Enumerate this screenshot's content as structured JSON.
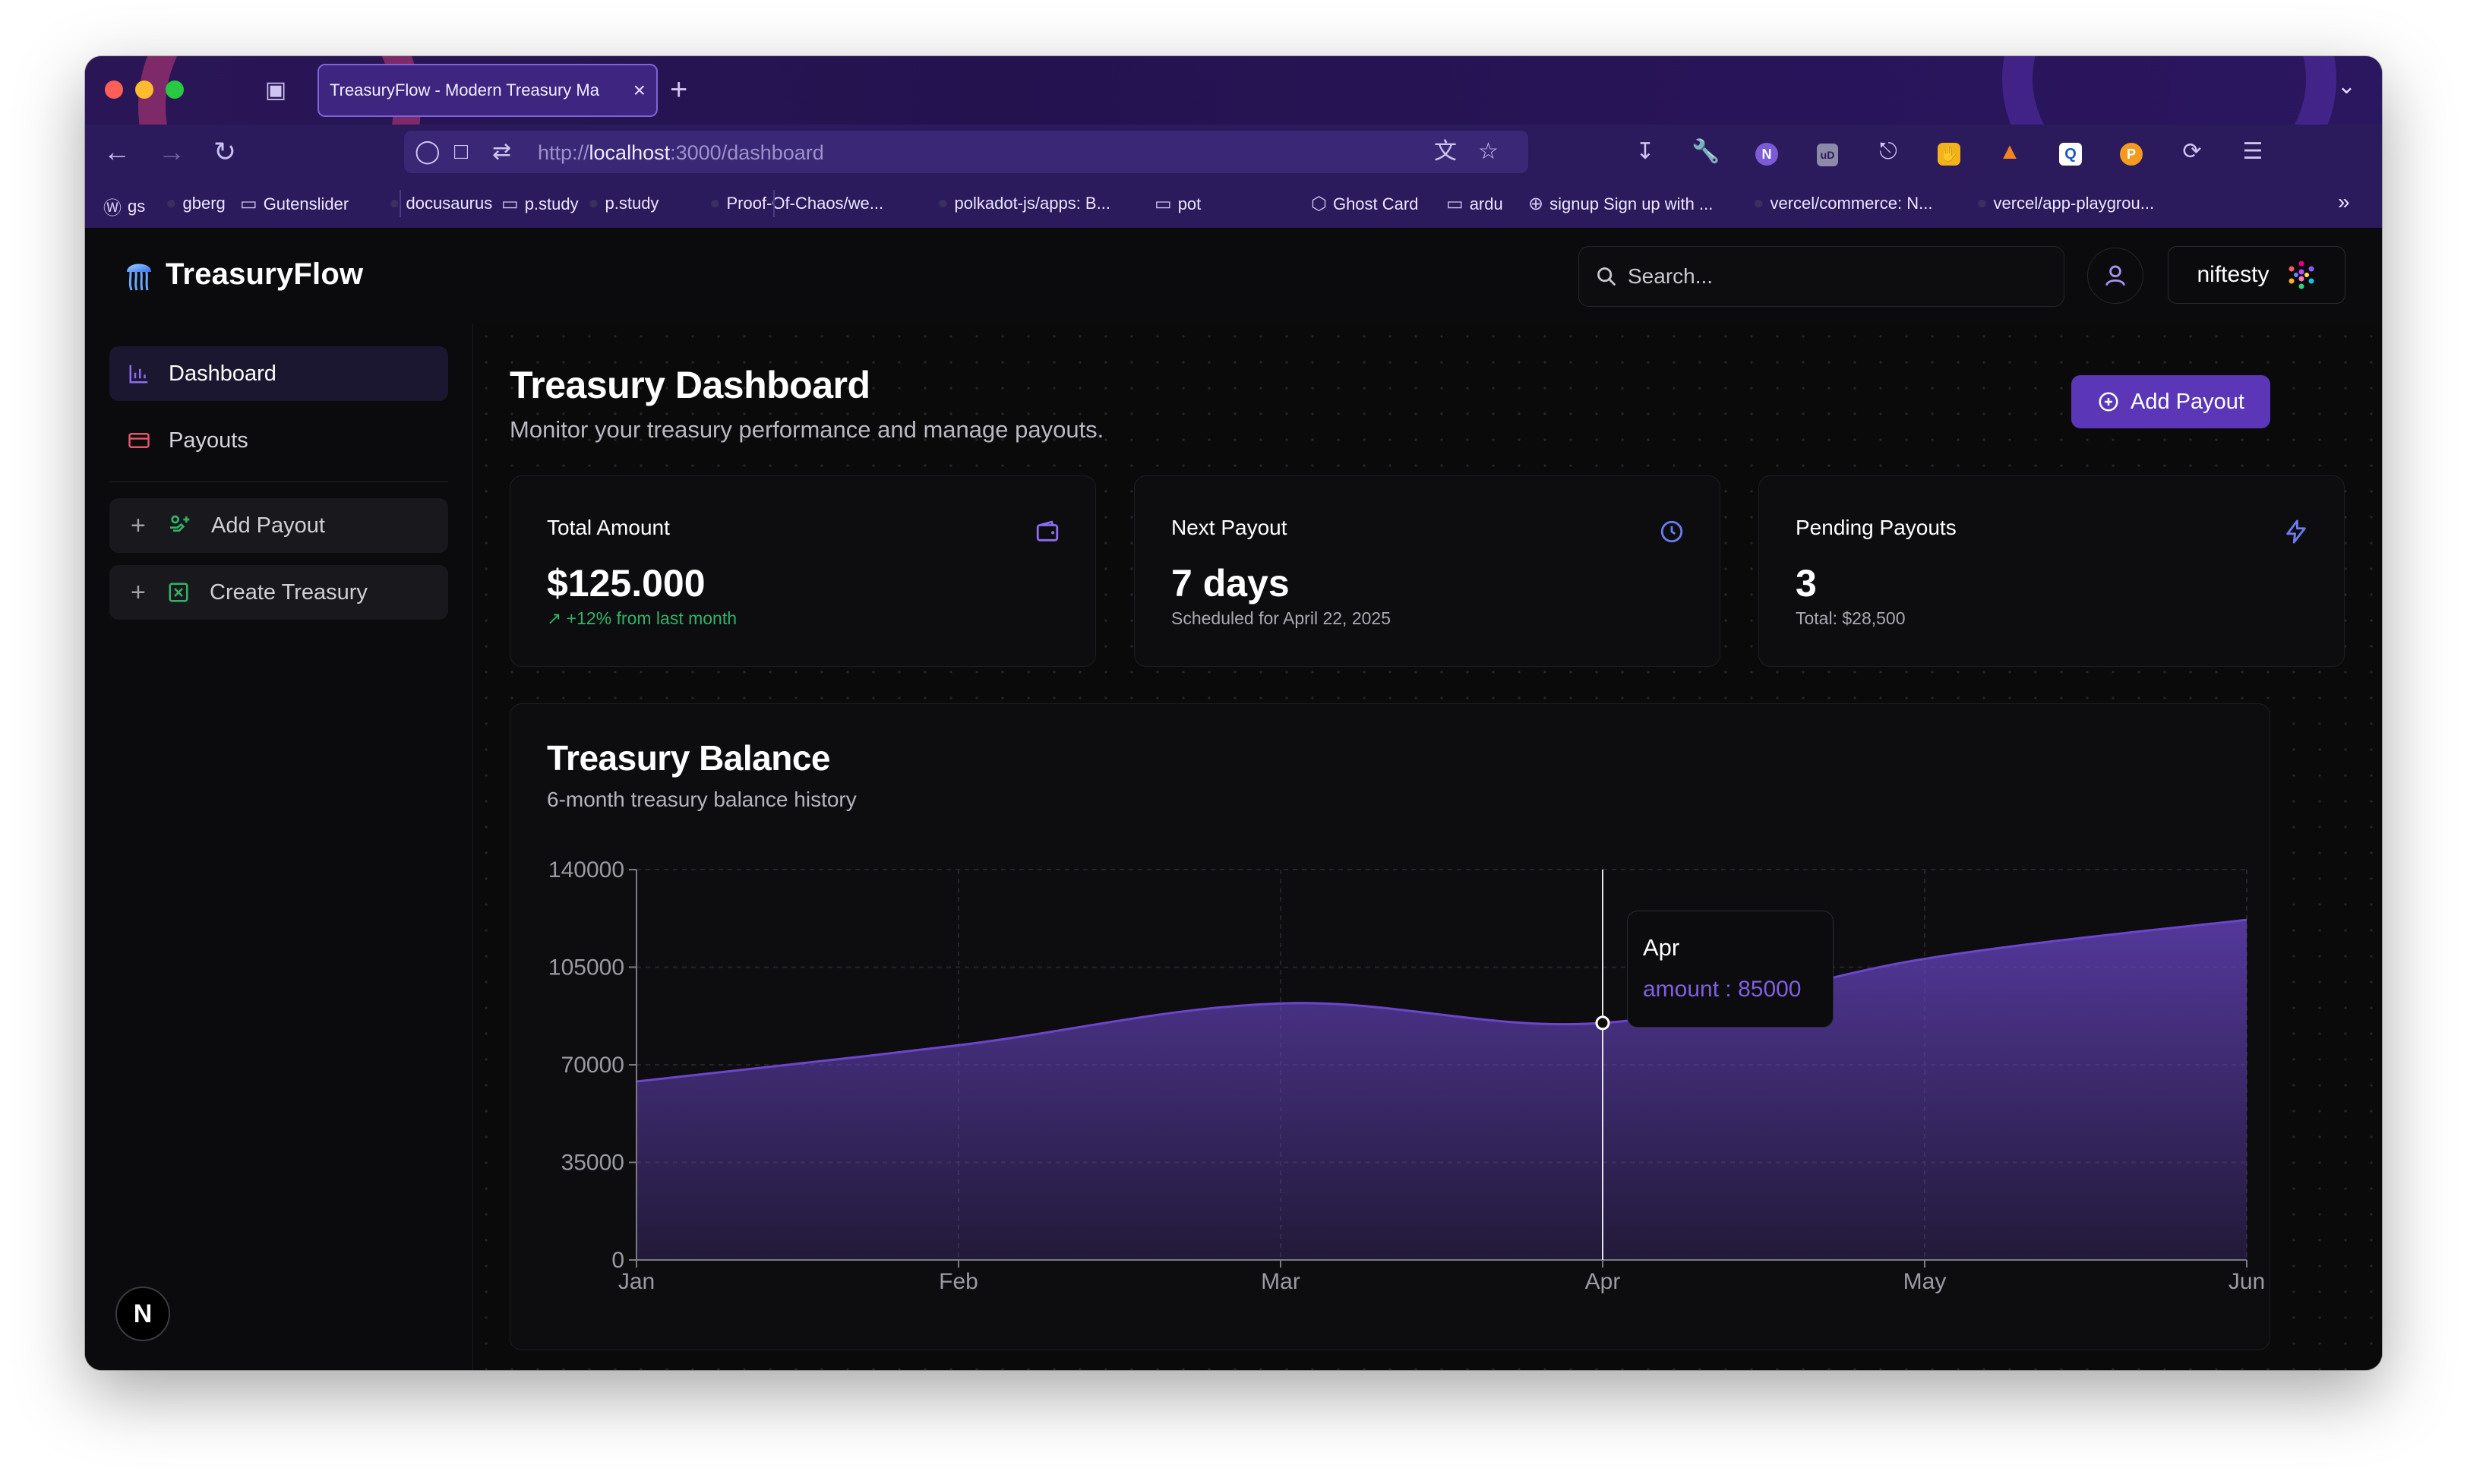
{
  "browser": {
    "tab_title": "TreasuryFlow - Modern Treasury Ma",
    "url_scheme": "http://",
    "url_host": "localhost",
    "url_path": ":3000/dashboard",
    "bookmarks": [
      {
        "label": "gs",
        "icon": "wordpress-icon"
      },
      {
        "label": "gberg",
        "icon": "github-icon"
      },
      {
        "label": "Gutenslider",
        "icon": "folder-icon"
      },
      {
        "label": "docusaurus",
        "icon": "github-icon"
      },
      {
        "label": "p.study",
        "icon": "folder-icon"
      },
      {
        "label": "p.study",
        "icon": "github-icon"
      },
      {
        "label": "Proof-Of-Chaos/we...",
        "icon": "github-icon"
      },
      {
        "label": "polkadot-js/apps: B...",
        "icon": "github-icon"
      },
      {
        "label": "pot",
        "icon": "folder-icon"
      },
      {
        "label": "Ghost Card",
        "icon": "codepen-icon"
      },
      {
        "label": "ardu",
        "icon": "folder-icon"
      },
      {
        "label": "signup Sign up with ...",
        "icon": "globe-icon"
      },
      {
        "label": "vercel/commerce: N...",
        "icon": "github-icon"
      },
      {
        "label": "vercel/app-playgrou...",
        "icon": "github-icon"
      }
    ]
  },
  "app": {
    "brand": "TreasuryFlow",
    "search_placeholder": "Search...",
    "wallet_name": "niftesty"
  },
  "sidebar": {
    "items": [
      {
        "label": "Dashboard",
        "icon": "bar-chart-icon",
        "active": true
      },
      {
        "label": "Payouts",
        "icon": "credit-card-icon",
        "active": false
      }
    ],
    "actions": [
      {
        "label": "Add Payout",
        "icon": "payout-icon"
      },
      {
        "label": "Create Treasury",
        "icon": "treasury-icon"
      }
    ],
    "badge": "N"
  },
  "main": {
    "title": "Treasury Dashboard",
    "subtitle": "Monitor your treasury performance and manage payouts.",
    "add_payout_label": "Add Payout",
    "cards": [
      {
        "title": "Total Amount",
        "value": "$125.000",
        "sub": "+12% from last month",
        "icon": "wallet-icon",
        "trend": "up"
      },
      {
        "title": "Next Payout",
        "value": "7 days",
        "sub": "Scheduled for April 22, 2025",
        "icon": "clock-icon"
      },
      {
        "title": "Pending Payouts",
        "value": "3",
        "sub": "Total: $28,500",
        "icon": "lightning-icon"
      }
    ]
  },
  "chart_title": "Treasury Balance",
  "chart_subtitle": "6-month treasury balance history",
  "tooltip": {
    "label": "Apr",
    "value_text": "amount : 85000"
  },
  "colors": {
    "accent": "#5b37b8",
    "series": "#6b46c9",
    "positive": "#2fb36a"
  },
  "chart_data": {
    "type": "area",
    "categories": [
      "Jan",
      "Feb",
      "Mar",
      "Apr",
      "May",
      "Jun"
    ],
    "series": [
      {
        "name": "amount",
        "values": [
          64000,
          77000,
          92000,
          85000,
          108000,
          122000
        ]
      }
    ],
    "yticks": [
      0,
      35000,
      70000,
      105000,
      140000
    ],
    "ylim": [
      0,
      140000
    ],
    "grid": true,
    "active_index": 3
  }
}
